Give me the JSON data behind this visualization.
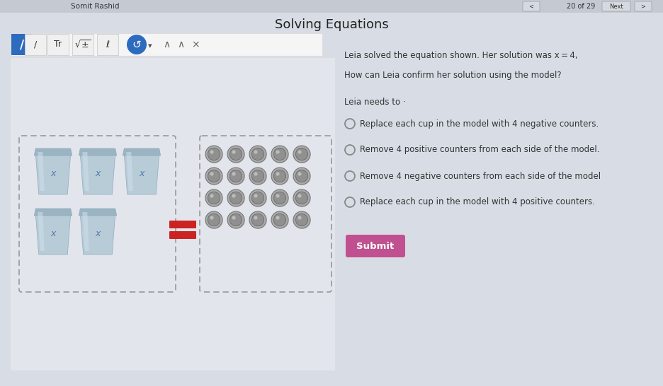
{
  "title": "Solving Equations",
  "header_name": "Somit Rashid",
  "instruction": "Leia solved the equation shown. Her solution was x = 4,",
  "question": "How can Leia confirm her solution using the model?",
  "prompt": "Leia needs to ·",
  "options": [
    "Replace each cup in the model with 4 negative counters.",
    "Remove 4 positive counters from each side of the model.",
    "Remove 4 negative counters from each side of the model",
    "Replace each cup in the model with 4 positive counters."
  ],
  "submit_label": "Submit",
  "bg_color": "#d8dde5",
  "left_panel_bg": "#e2e6ec",
  "right_panel_bg": "#eaedf1",
  "toolbar_bg": "#f5f5f5",
  "title_fontsize": 13,
  "option_fontsize": 8.5,
  "equal_color": "#cc2222",
  "submit_bg": "#c05090",
  "submit_text": "#ffffff",
  "nav_text": "20 of 29",
  "counter_rows": 4,
  "counter_cols": 5
}
